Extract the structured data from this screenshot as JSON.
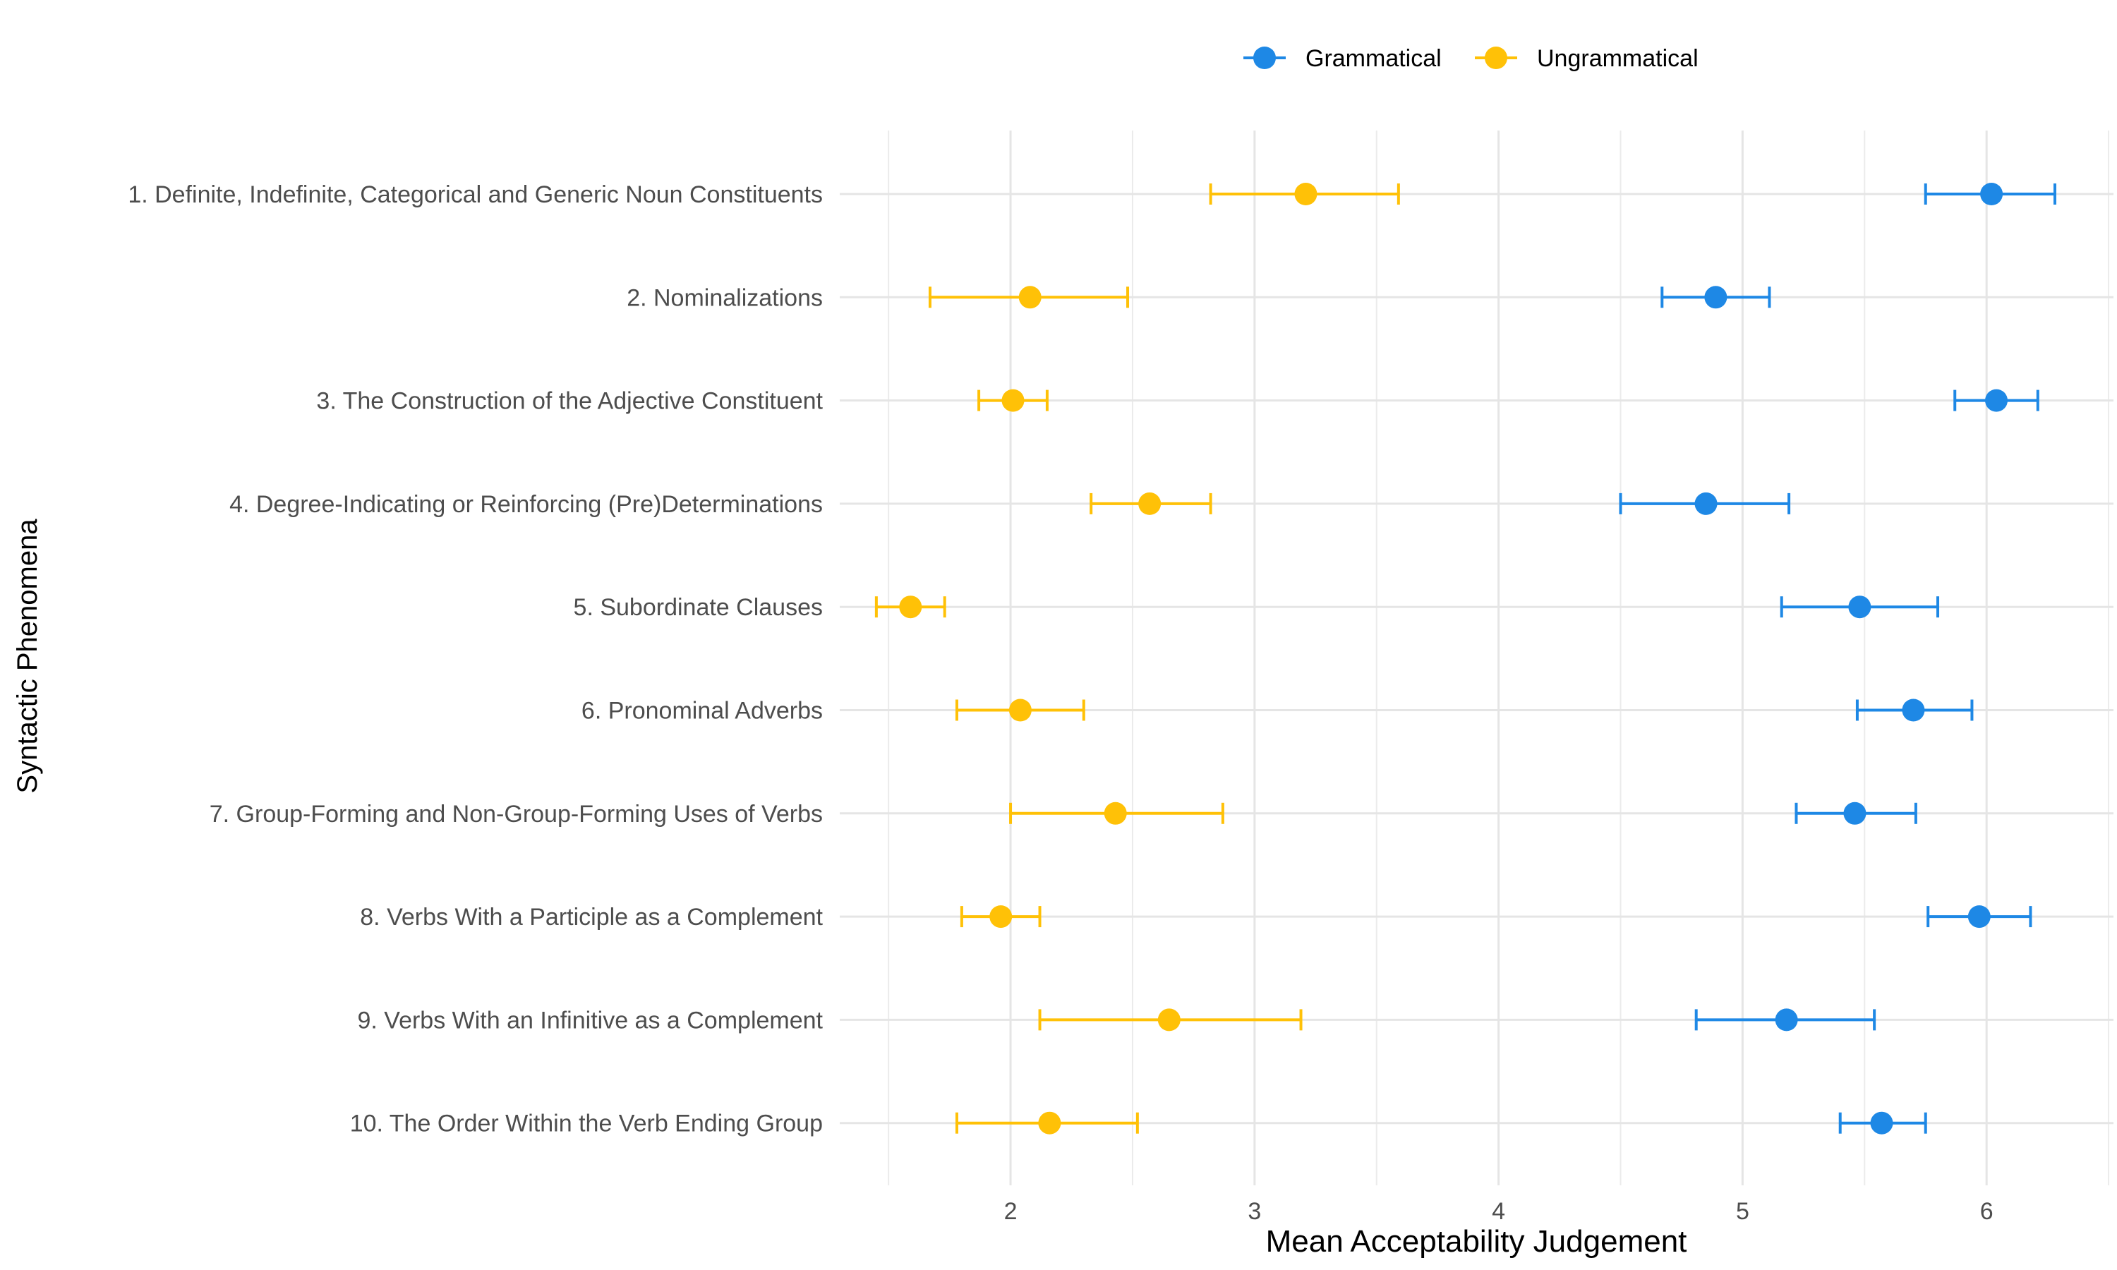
{
  "chart_data": {
    "type": "scatter",
    "xlabel": "Mean Acceptability Judgement",
    "ylabel": "Syntactic Phenomena",
    "xlim": [
      1.3,
      6.52
    ],
    "xticks": [
      2,
      3,
      4,
      5,
      6
    ],
    "grid": true,
    "legend_position": "top",
    "categories": [
      "1. Definite, Indefinite, Categorical and Generic Noun Constituents",
      "2. Nominalizations",
      "3. The Construction of the Adjective Constituent",
      "4. Degree-Indicating or Reinforcing (Pre)Determinations",
      "5. Subordinate Clauses",
      "6. Pronominal Adverbs",
      "7. Group-Forming and Non-Group-Forming Uses of Verbs",
      "8. Verbs With a Participle as a Complement",
      "9. Verbs With an Infinitive as a Complement",
      "10. The Order Within the Verb Ending Group"
    ],
    "series": [
      {
        "name": "Grammatical",
        "color": "#1E88E5",
        "values": [
          6.02,
          4.89,
          6.04,
          4.85,
          5.48,
          5.7,
          5.46,
          5.97,
          5.18,
          5.57
        ],
        "lower": [
          5.75,
          4.67,
          5.87,
          4.5,
          5.16,
          5.47,
          5.22,
          5.76,
          4.81,
          5.4
        ],
        "upper": [
          6.28,
          5.11,
          6.21,
          5.19,
          5.8,
          5.94,
          5.71,
          6.18,
          5.54,
          5.75
        ]
      },
      {
        "name": "Ungrammatical",
        "color": "#FFC107",
        "values": [
          3.21,
          2.08,
          2.01,
          2.57,
          1.59,
          2.04,
          2.43,
          1.96,
          2.65,
          2.16
        ],
        "lower": [
          2.82,
          1.67,
          1.87,
          2.33,
          1.45,
          1.78,
          2.0,
          1.8,
          2.12,
          1.78
        ],
        "upper": [
          3.59,
          2.48,
          2.15,
          2.82,
          1.73,
          2.3,
          2.87,
          2.12,
          3.19,
          2.52
        ]
      }
    ]
  }
}
